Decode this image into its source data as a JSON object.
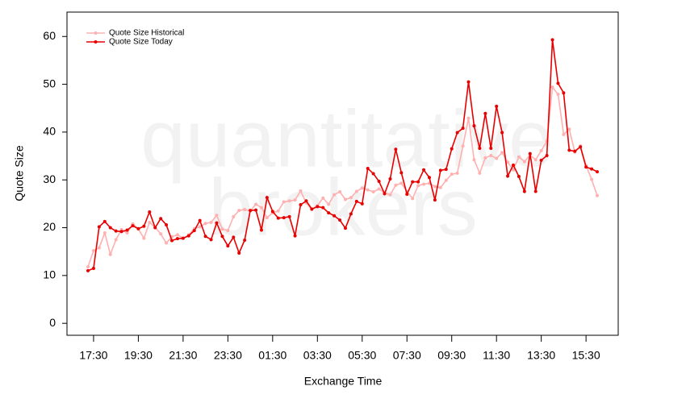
{
  "chart_data": {
    "type": "line",
    "y_label": "Quote Size",
    "x_label": "Exchange Time",
    "watermark": [
      "quantitative",
      "brokers"
    ],
    "categories": [
      null,
      "17:30",
      null,
      null,
      null,
      null,
      null,
      null,
      null,
      "19:30",
      null,
      null,
      null,
      null,
      null,
      null,
      null,
      "21:30",
      null,
      null,
      null,
      null,
      null,
      null,
      null,
      "23:30",
      null,
      null,
      null,
      null,
      null,
      null,
      null,
      "01:30",
      null,
      null,
      null,
      null,
      null,
      null,
      null,
      "03:30",
      null,
      null,
      null,
      null,
      null,
      null,
      null,
      "05:30",
      null,
      null,
      null,
      null,
      null,
      null,
      null,
      "07:30",
      null,
      null,
      null,
      null,
      null,
      null,
      null,
      "09:30",
      null,
      null,
      null,
      null,
      null,
      null,
      null,
      "11:30",
      null,
      null,
      null,
      null,
      null,
      null,
      null,
      "13:30",
      null,
      null,
      null,
      null,
      null,
      null,
      null,
      "15:30",
      null,
      null
    ],
    "series": [
      {
        "name": "Quote Size Historical",
        "color": "#ffb0b0",
        "values": [
          11.8,
          15.2,
          15.8,
          18.9,
          14.4,
          17.5,
          19.6,
          18.9,
          20.8,
          19.7,
          17.8,
          21.1,
          20.1,
          18.7,
          16.8,
          18.1,
          18.5,
          17.8,
          18.5,
          19.8,
          20.2,
          20.9,
          21.1,
          22.6,
          19.7,
          19.4,
          22.3,
          23.6,
          23.8,
          23.5,
          24.9,
          24.2,
          22.1,
          23.1,
          23.5,
          25.4,
          25.6,
          25.8,
          27.7,
          25.2,
          23.8,
          24.6,
          26.2,
          24.9,
          26.9,
          27.5,
          25.9,
          26.3,
          27.6,
          28.3,
          27.9,
          27.5,
          28.1,
          27.3,
          26.9,
          28.9,
          29.3,
          27.6,
          26.1,
          28.8,
          29.1,
          29.3,
          28.6,
          28.4,
          29.9,
          31.2,
          31.4,
          37.1,
          42.9,
          34.2,
          31.4,
          34.6,
          35.1,
          34.5,
          35.7,
          33.7,
          32.1,
          34.8,
          33.8,
          35.2,
          34.2,
          36.1,
          38.1,
          49.4,
          47.9,
          39.5,
          40.6,
          35.8,
          37.1,
          33.0,
          30.1,
          26.7
        ]
      },
      {
        "name": "Quote Size Today",
        "color": "#e80000",
        "values": [
          11,
          11.5,
          20.2,
          21.3,
          20,
          19.3,
          19.2,
          19.5,
          20.4,
          19.8,
          20.3,
          23.3,
          20,
          21.9,
          20.6,
          17.3,
          17.7,
          17.8,
          18.3,
          19.4,
          21.5,
          18.2,
          17.5,
          21,
          18.2,
          16.2,
          18,
          14.7,
          17.4,
          23.6,
          23.7,
          19.5,
          26.3,
          23.4,
          22,
          22.1,
          22.3,
          18.3,
          24.8,
          25.6,
          23.9,
          24.4,
          24.2,
          23.1,
          22.5,
          21.6,
          19.9,
          22.9,
          25.5,
          25,
          32.4,
          31.3,
          29.7,
          27.1,
          30.2,
          36.4,
          31.5,
          27,
          29.6,
          29.6,
          32.1,
          30.5,
          25.8,
          32,
          32.2,
          36.5,
          39.9,
          40.8,
          50.5,
          41.3,
          36.6,
          43.9,
          36.6,
          45.4,
          39.9,
          30.8,
          33.1,
          30.7,
          27.6,
          35.5,
          27.6,
          34.1,
          35.1,
          59.3,
          50.2,
          48.2,
          36.2,
          36,
          36.9,
          32.7,
          32.3,
          31.7
        ]
      }
    ],
    "ylim": [
      -2.5,
      65.1
    ],
    "yticks": [
      0,
      10,
      20,
      30,
      40,
      50,
      60
    ],
    "legend": "top-left"
  }
}
